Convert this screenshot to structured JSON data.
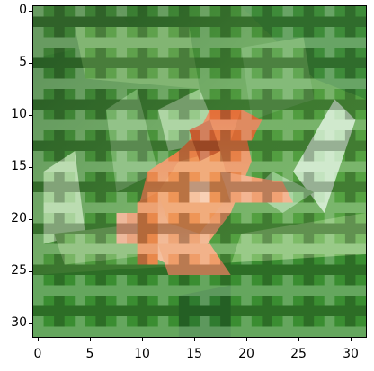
{
  "image": {
    "description": "Pixelated 32x32 photograph of an orange frog on green leaves",
    "colors": {
      "background_green": "#4f9a3e",
      "dark_green": "#2f6f2c",
      "light_green": "#8bc27a",
      "leaf_highlight": "#b8dbb0",
      "frog_orange": "#e97f43",
      "frog_light": "#f0aa7b",
      "frog_dark": "#bf5b2d"
    }
  },
  "axes": {
    "x_ticks": [
      "0",
      "5",
      "10",
      "15",
      "20",
      "25",
      "30"
    ],
    "y_ticks": [
      "0",
      "5",
      "10",
      "15",
      "20",
      "25",
      "30"
    ]
  }
}
